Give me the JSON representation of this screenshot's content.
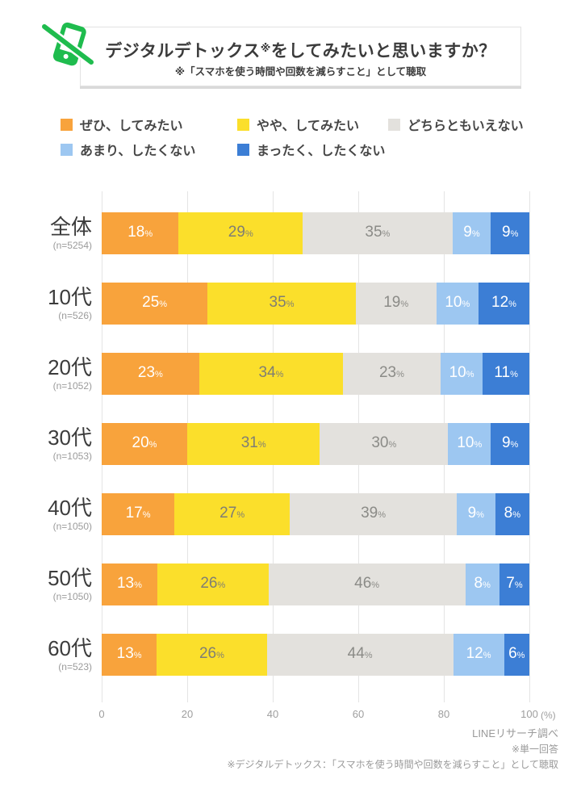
{
  "page": {
    "background": "#FFFFFF"
  },
  "header": {
    "icon": {
      "name": "no-smartphone-icon",
      "color": "#1FBC4E"
    },
    "title_pre": "デジタルデトックス",
    "title_marker": "※",
    "title_post": "をしてみたいと思いますか？",
    "subtitle": "※「スマホを使う時間や回数を減らすこと」として聴取"
  },
  "chart_data": {
    "type": "bar",
    "variant": "horizontal-stacked-100pct",
    "title": "デジタルデトックス※をしてみたいと思いますか？",
    "subtitle": "※「スマホを使う時間や回数を減らすこと」として聴取",
    "categories": [
      "全体",
      "10代",
      "20代",
      "30代",
      "40代",
      "50代",
      "60代"
    ],
    "sample_sizes": [
      "(n=5254)",
      "(n=526)",
      "(n=1052)",
      "(n=1053)",
      "(n=1050)",
      "(n=1050)",
      "(n=523)"
    ],
    "series": [
      {
        "name": "ぜひ、してみたい",
        "color": "#F8A33C",
        "value_color": "#FFFFFF",
        "values": [
          18,
          25,
          23,
          20,
          17,
          13,
          13
        ]
      },
      {
        "name": "やや、してみたい",
        "color": "#FBDF2B",
        "value_color": "#7F7E74",
        "values": [
          29,
          35,
          34,
          31,
          27,
          26,
          26
        ]
      },
      {
        "name": "どちらともいえない",
        "color": "#E3E1DD",
        "value_color": "#8B8B87",
        "values": [
          35,
          19,
          23,
          30,
          39,
          46,
          44
        ]
      },
      {
        "name": "あまり、したくない",
        "color": "#9DC7F1",
        "value_color": "#FFFFFF",
        "values": [
          9,
          10,
          10,
          10,
          9,
          8,
          12
        ]
      },
      {
        "name": "まったく、したくない",
        "color": "#3C7ED5",
        "value_color": "#FFFFFF",
        "values": [
          9,
          12,
          11,
          9,
          8,
          7,
          6
        ]
      }
    ],
    "xlim": [
      0,
      100
    ],
    "x_ticks": [
      "0",
      "20",
      "40",
      "60",
      "80",
      "100"
    ],
    "x_unit": "(%)",
    "value_suffix": "%",
    "legend_position": "top",
    "grid": "vertical"
  },
  "footer": {
    "lines": [
      "LINEリサーチ調べ",
      "※単一回答",
      "※デジタルデトックス：「スマホを使う時間や回数を減らすこと」として聴取"
    ]
  }
}
